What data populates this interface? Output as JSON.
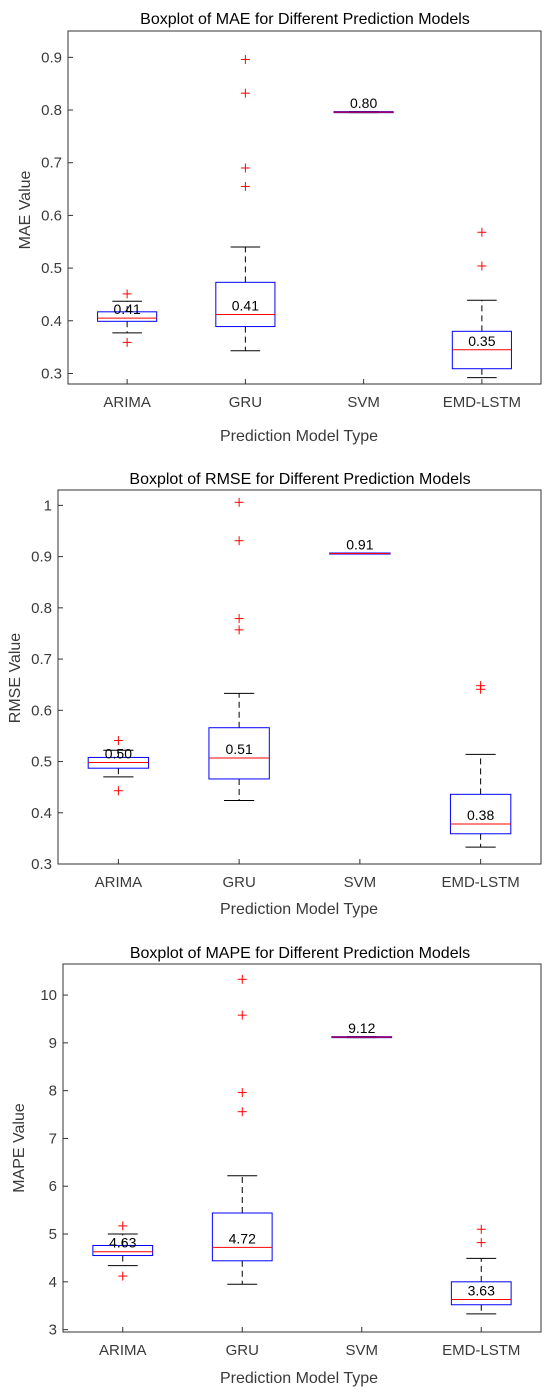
{
  "chart_data": [
    {
      "type": "boxplot",
      "title": "Boxplot of MAE for Different Prediction Models",
      "xlabel": "Prediction Model Type",
      "ylabel": "MAE Value",
      "ylim": [
        0.28,
        0.95
      ],
      "yticks": [
        0.3,
        0.4,
        0.5,
        0.6,
        0.7,
        0.8,
        0.9
      ],
      "ytick_labels": [
        "0.3",
        "0.4",
        "0.5",
        "0.6",
        "0.7",
        "0.8",
        "0.9"
      ],
      "grid": false,
      "categories": [
        "ARIMA",
        "GRU",
        "SVM",
        "EMD-LSTM"
      ],
      "boxes": [
        {
          "q1": 0.399,
          "median": 0.405,
          "q3": 0.417,
          "whisker_low": 0.377,
          "whisker_high": 0.437,
          "outliers": [
            0.359,
            0.451
          ],
          "label": "0.41"
        },
        {
          "q1": 0.389,
          "median": 0.412,
          "q3": 0.473,
          "whisker_low": 0.343,
          "whisker_high": 0.54,
          "outliers": [
            0.655,
            0.69,
            0.832,
            0.896
          ],
          "label": "0.41"
        },
        {
          "q1": 0.795,
          "median": 0.796,
          "q3": 0.797,
          "whisker_low": 0.795,
          "whisker_high": 0.797,
          "outliers": [],
          "label": "0.80"
        },
        {
          "q1": 0.309,
          "median": 0.345,
          "q3": 0.38,
          "whisker_low": 0.292,
          "whisker_high": 0.439,
          "outliers": [
            0.504,
            0.568
          ],
          "label": "0.35"
        }
      ]
    },
    {
      "type": "boxplot",
      "title": "Boxplot of RMSE for Different Prediction Models",
      "xlabel": "Prediction Model Type",
      "ylabel": "RMSE Value",
      "ylim": [
        0.3,
        1.03
      ],
      "yticks": [
        0.3,
        0.4,
        0.5,
        0.6,
        0.7,
        0.8,
        0.9,
        1.0
      ],
      "ytick_labels": [
        "0.3",
        "0.4",
        "0.5",
        "0.6",
        "0.7",
        "0.8",
        "0.9",
        "1"
      ],
      "grid": false,
      "categories": [
        "ARIMA",
        "GRU",
        "SVM",
        "EMD-LSTM"
      ],
      "boxes": [
        {
          "q1": 0.487,
          "median": 0.498,
          "q3": 0.508,
          "whisker_low": 0.47,
          "whisker_high": 0.522,
          "outliers": [
            0.443,
            0.541
          ],
          "label": "0.50"
        },
        {
          "q1": 0.466,
          "median": 0.507,
          "q3": 0.566,
          "whisker_low": 0.424,
          "whisker_high": 0.633,
          "outliers": [
            0.757,
            0.779,
            0.931,
            1.006
          ],
          "label": "0.51"
        },
        {
          "q1": 0.905,
          "median": 0.906,
          "q3": 0.907,
          "whisker_low": 0.905,
          "whisker_high": 0.907,
          "outliers": [],
          "label": "0.91"
        },
        {
          "q1": 0.359,
          "median": 0.378,
          "q3": 0.436,
          "whisker_low": 0.333,
          "whisker_high": 0.514,
          "outliers": [
            0.641,
            0.648
          ],
          "label": "0.38"
        }
      ]
    },
    {
      "type": "boxplot",
      "title": "Boxplot of MAPE for Different Prediction Models",
      "xlabel": "Prediction Model Type",
      "ylabel": "MAPE Value",
      "ylim": [
        2.95,
        10.65
      ],
      "yticks": [
        3,
        4,
        5,
        6,
        7,
        8,
        9,
        10
      ],
      "ytick_labels": [
        "3",
        "4",
        "5",
        "6",
        "7",
        "8",
        "9",
        "10"
      ],
      "grid": false,
      "categories": [
        "ARIMA",
        "GRU",
        "SVM",
        "EMD-LSTM"
      ],
      "boxes": [
        {
          "q1": 4.55,
          "median": 4.63,
          "q3": 4.76,
          "whisker_low": 4.34,
          "whisker_high": 5.0,
          "outliers": [
            4.12,
            5.17
          ],
          "label": "4.63"
        },
        {
          "q1": 4.44,
          "median": 4.72,
          "q3": 5.44,
          "whisker_low": 3.95,
          "whisker_high": 6.22,
          "outliers": [
            7.56,
            7.96,
            9.58,
            10.33
          ],
          "label": "4.72"
        },
        {
          "q1": 9.11,
          "median": 9.12,
          "q3": 9.13,
          "whisker_low": 9.11,
          "whisker_high": 9.13,
          "outliers": [],
          "label": "9.12"
        },
        {
          "q1": 3.52,
          "median": 3.63,
          "q3": 4.0,
          "whisker_low": 3.33,
          "whisker_high": 4.49,
          "outliers": [
            4.82,
            5.1
          ],
          "label": "3.63"
        }
      ]
    }
  ]
}
